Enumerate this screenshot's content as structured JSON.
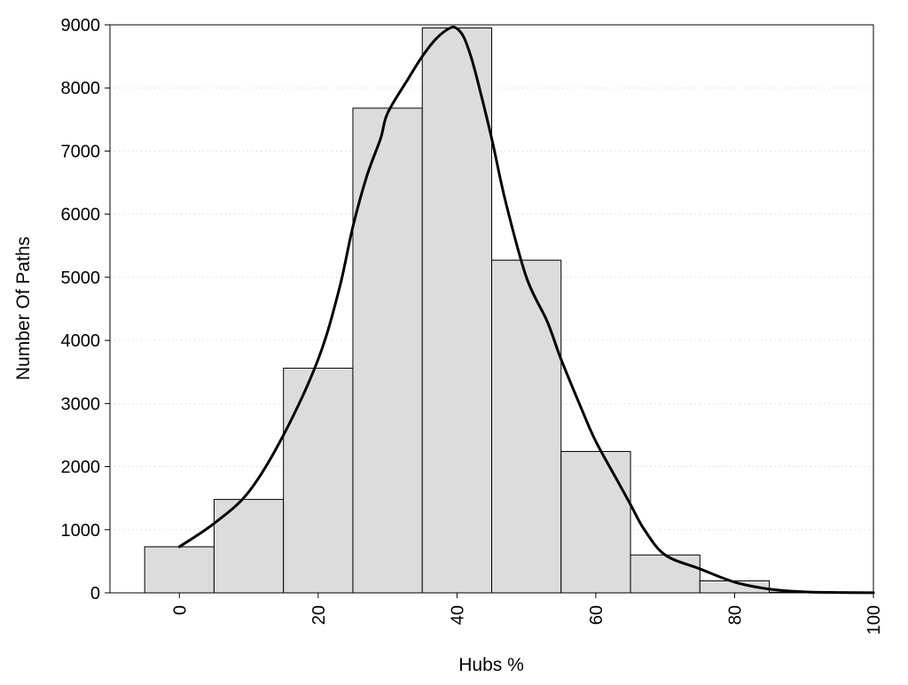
{
  "chart_data": {
    "type": "bar",
    "title": "",
    "xlabel": "Hubs %",
    "ylabel": "Number Of Paths",
    "xlim": [
      -10,
      100
    ],
    "ylim": [
      0,
      9000
    ],
    "xticks": [
      0,
      20,
      40,
      60,
      80,
      100
    ],
    "yticks": [
      0,
      1000,
      2000,
      3000,
      4000,
      5000,
      6000,
      7000,
      8000,
      9000
    ],
    "grid": "horizontal dotted",
    "bar_width": 10,
    "bars": {
      "centers": [
        0,
        10,
        20,
        30,
        40,
        50,
        60,
        70,
        80,
        90
      ],
      "values": [
        730,
        1480,
        3560,
        7680,
        8950,
        5270,
        2240,
        600,
        190,
        10
      ]
    },
    "density_curve": {
      "x": [
        0,
        5,
        10,
        15,
        20,
        23,
        25,
        27,
        29,
        30,
        33,
        35,
        37,
        39,
        40,
        41,
        42,
        43,
        45,
        47,
        50,
        53,
        55,
        58,
        60,
        63,
        65,
        67,
        70,
        75,
        80,
        85,
        90,
        95,
        100
      ],
      "y": [
        730,
        1100,
        1600,
        2500,
        3700,
        4800,
        5800,
        6600,
        7200,
        7600,
        8150,
        8500,
        8780,
        8950,
        8940,
        8800,
        8500,
        8100,
        7200,
        6200,
        5000,
        4300,
        3700,
        2900,
        2400,
        1800,
        1400,
        1000,
        600,
        380,
        170,
        60,
        15,
        5,
        2
      ]
    },
    "colors": {
      "bar_fill": "#dcdcdc",
      "bar_edge": "#000000",
      "curve": "#000000",
      "grid": "#cfcfcf"
    }
  }
}
